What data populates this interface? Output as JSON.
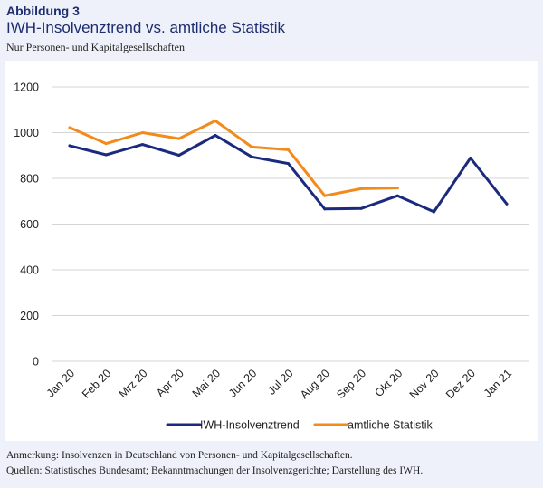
{
  "figure": {
    "label": "Abbildung 3",
    "title": "IWH-Insolvenztrend vs. amtliche Statistik",
    "subtitle": "Nur Personen- und Kapitalgesellschaften"
  },
  "notes": {
    "remark": "Anmerkung: Insolvenzen in Deutschland von Personen- und Kapitalgesellschaften.",
    "sources": "Quellen: Statistisches Bundesamt; Bekanntmachungen der Insolvenzgerichte; Darstellung des IWH."
  },
  "colors": {
    "iwh": "#1c2a7e",
    "amtlich": "#f28a1c",
    "grid": "#d4d4d4",
    "panel_background": "#ffffff",
    "page_background": "#eef1f9",
    "title": "#1c2c6e"
  },
  "chart_data": {
    "type": "line",
    "categories": [
      "Jan 20",
      "Feb 20",
      "Mrz 20",
      "Apr 20",
      "Mai 20",
      "Jun 20",
      "Jul 20",
      "Aug 20",
      "Sep 20",
      "Okt 20",
      "Nov 20",
      "Dez 20",
      "Jan 21"
    ],
    "series": [
      {
        "name": "IWH-Insolvenztrend",
        "color": "#1c2a7e",
        "values": [
          943,
          903,
          948,
          901,
          988,
          894,
          865,
          666,
          668,
          724,
          654,
          889,
          688
        ]
      },
      {
        "name": "amtliche Statistik",
        "color": "#f28a1c",
        "values": [
          1022,
          952,
          1000,
          974,
          1052,
          937,
          925,
          724,
          755,
          758,
          null,
          null,
          null
        ]
      }
    ],
    "yticks": [
      "0",
      "200",
      "400",
      "600",
      "800",
      "1000",
      "1200"
    ],
    "ylim": [
      0,
      1200
    ],
    "grid": "horizontal",
    "legend_position": "bottom"
  }
}
